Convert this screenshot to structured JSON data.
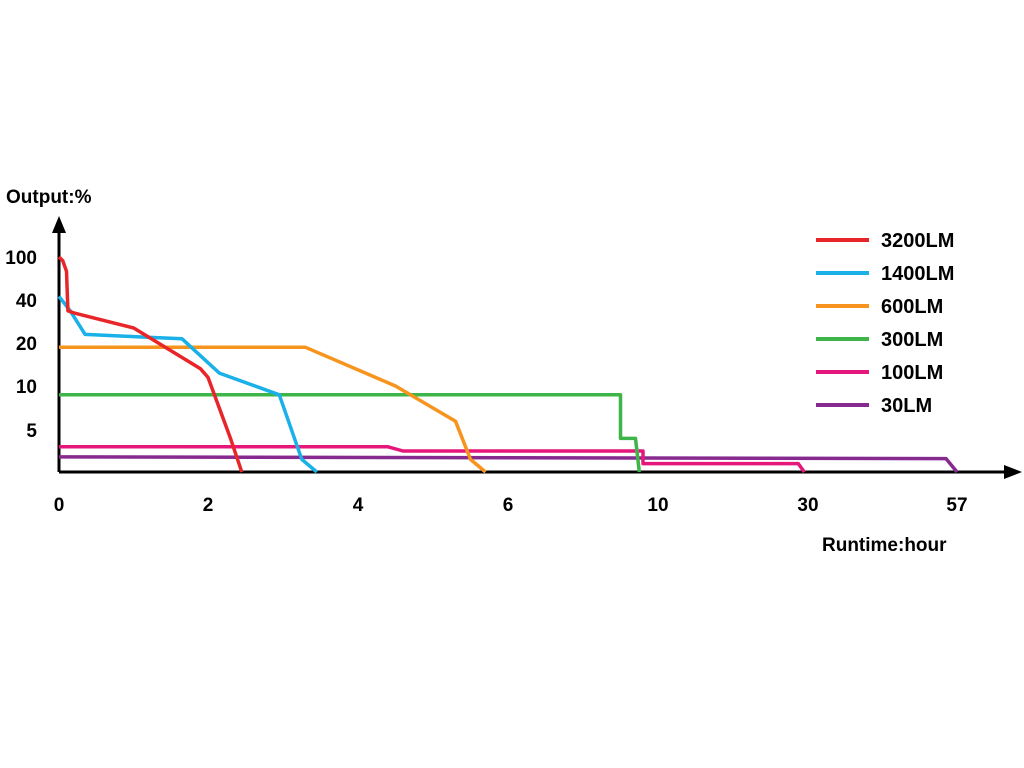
{
  "chart_data": {
    "type": "line",
    "title": "",
    "ylabel": "Output:%",
    "xlabel": "Runtime:hour",
    "x_ticks": [
      "0",
      "2",
      "4",
      "6",
      "10",
      "30",
      "57"
    ],
    "y_ticks": [
      "5",
      "10",
      "20",
      "40",
      "100"
    ],
    "axis_note": "Both axes are non-linear: tick labels are evenly spaced categorical marks",
    "legend_position": "top-right",
    "grid": false,
    "series": [
      {
        "name": "3200LM",
        "color": "#e8262a",
        "points": [
          [
            0,
            100
          ],
          [
            0.05,
            95
          ],
          [
            0.1,
            80
          ],
          [
            0.12,
            35
          ],
          [
            0.2,
            34
          ],
          [
            1.0,
            27
          ],
          [
            1.9,
            14
          ],
          [
            2.0,
            12
          ],
          [
            2.3,
            4
          ],
          [
            2.45,
            0
          ]
        ]
      },
      {
        "name": "1400LM",
        "color": "#1ab0e8",
        "points": [
          [
            0,
            45
          ],
          [
            0.15,
            35
          ],
          [
            0.35,
            24
          ],
          [
            1.0,
            23
          ],
          [
            1.65,
            22
          ],
          [
            2.15,
            13
          ],
          [
            2.95,
            9
          ],
          [
            3.25,
            1.5
          ],
          [
            3.45,
            0
          ]
        ]
      },
      {
        "name": "600LM",
        "color": "#f7941e",
        "points": [
          [
            0,
            19
          ],
          [
            3.3,
            19
          ],
          [
            4.5,
            10
          ],
          [
            5.3,
            6
          ],
          [
            5.5,
            1.5
          ],
          [
            5.7,
            0
          ]
        ]
      },
      {
        "name": "300LM",
        "color": "#3db549",
        "points": [
          [
            0,
            9
          ],
          [
            9.0,
            9
          ],
          [
            9.0,
            4
          ],
          [
            9.4,
            4
          ],
          [
            9.5,
            0
          ]
        ]
      },
      {
        "name": "100LM",
        "color": "#e6177a",
        "points": [
          [
            0,
            3
          ],
          [
            4.4,
            3
          ],
          [
            4.6,
            2.5
          ],
          [
            9.6,
            2.5
          ],
          [
            9.6,
            1
          ],
          [
            28.7,
            1
          ],
          [
            29.5,
            0
          ]
        ]
      },
      {
        "name": "30LM",
        "color": "#862a8f",
        "points": [
          [
            0,
            1.8
          ],
          [
            55,
            1.6
          ],
          [
            57,
            0
          ]
        ]
      }
    ]
  }
}
